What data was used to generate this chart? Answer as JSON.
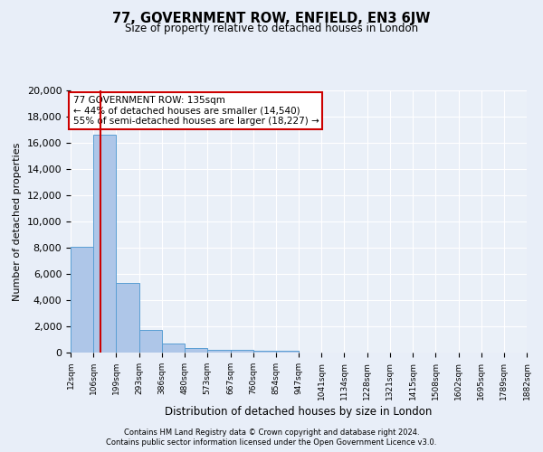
{
  "title": "77, GOVERNMENT ROW, ENFIELD, EN3 6JW",
  "subtitle": "Size of property relative to detached houses in London",
  "xlabel": "Distribution of detached houses by size in London",
  "ylabel": "Number of detached properties",
  "footer_line1": "Contains HM Land Registry data © Crown copyright and database right 2024.",
  "footer_line2": "Contains public sector information licensed under the Open Government Licence v3.0.",
  "annotation_line1": "77 GOVERNMENT ROW: 135sqm",
  "annotation_line2": "← 44% of detached houses are smaller (14,540)",
  "annotation_line3": "55% of semi-detached houses are larger (18,227) →",
  "property_size": 135,
  "bar_edges": [
    12,
    106,
    199,
    293,
    386,
    480,
    573,
    667,
    760,
    854,
    947,
    1041,
    1134,
    1228,
    1321,
    1415,
    1508,
    1602,
    1695,
    1789,
    1882
  ],
  "bar_heights": [
    8100,
    16600,
    5300,
    1750,
    700,
    330,
    230,
    200,
    170,
    160,
    0,
    0,
    0,
    0,
    0,
    0,
    0,
    0,
    0,
    0
  ],
  "bar_color": "#aec6e8",
  "bar_edge_color": "#5a9fd4",
  "red_line_x": 135,
  "background_color": "#e8eef8",
  "plot_background": "#eaf0f8",
  "ylim": [
    0,
    20000
  ],
  "yticks": [
    0,
    2000,
    4000,
    6000,
    8000,
    10000,
    12000,
    14000,
    16000,
    18000,
    20000
  ],
  "grid_color": "#ffffff",
  "annotation_box_color": "#cc0000"
}
